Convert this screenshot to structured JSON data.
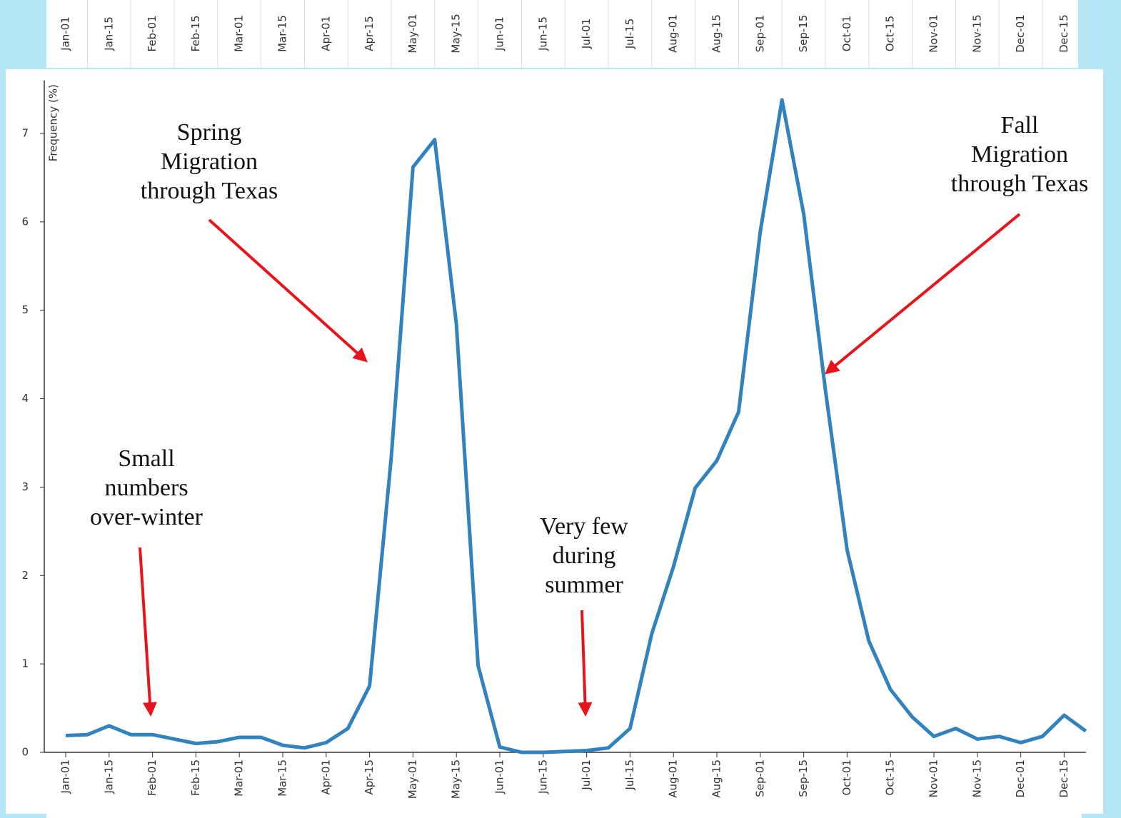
{
  "chart_data": {
    "type": "line",
    "y_label": "Frequency (%)",
    "categories": [
      "Jan-01",
      null,
      "Jan-15",
      null,
      "Feb-01",
      null,
      "Feb-15",
      null,
      "Mar-01",
      null,
      "Mar-15",
      null,
      "Apr-01",
      null,
      "Apr-15",
      null,
      "May-01",
      null,
      "May-15",
      null,
      "Jun-01",
      null,
      "Jun-15",
      null,
      "Jul-01",
      null,
      "Jul-15",
      null,
      "Aug-01",
      null,
      "Aug-15",
      null,
      "Sep-01",
      null,
      "Sep-15",
      null,
      "Oct-01",
      null,
      "Oct-15",
      null,
      "Nov-01",
      null,
      "Nov-15",
      null,
      "Dec-01",
      null,
      "Dec-15",
      null
    ],
    "values": [
      0.19,
      0.2,
      0.3,
      0.2,
      0.2,
      0.15,
      0.1,
      0.12,
      0.17,
      0.17,
      0.08,
      0.05,
      0.11,
      0.27,
      0.75,
      3.34,
      6.62,
      6.93,
      4.84,
      0.98,
      0.06,
      0.0,
      0.0,
      0.01,
      0.02,
      0.05,
      0.27,
      1.34,
      2.1,
      2.99,
      3.3,
      3.85,
      5.89,
      7.38,
      6.09,
      4.1,
      2.29,
      1.26,
      0.71,
      0.4,
      0.18,
      0.27,
      0.15,
      0.18,
      0.11,
      0.18,
      0.42,
      0.24
    ],
    "color": "#3182bd",
    "ylim": [
      0,
      7.6
    ],
    "yticks": [
      0,
      1,
      2,
      3,
      4,
      5,
      6,
      7
    ],
    "annotations": [
      {
        "lines": [
          "Spring",
          "Migration",
          "through Texas"
        ]
      },
      {
        "lines": [
          "Fall",
          "Migration",
          "through Texas"
        ]
      },
      {
        "lines": [
          "Small",
          "numbers",
          "over-winter"
        ]
      },
      {
        "lines": [
          "Very few",
          "during",
          "summer"
        ]
      }
    ]
  }
}
